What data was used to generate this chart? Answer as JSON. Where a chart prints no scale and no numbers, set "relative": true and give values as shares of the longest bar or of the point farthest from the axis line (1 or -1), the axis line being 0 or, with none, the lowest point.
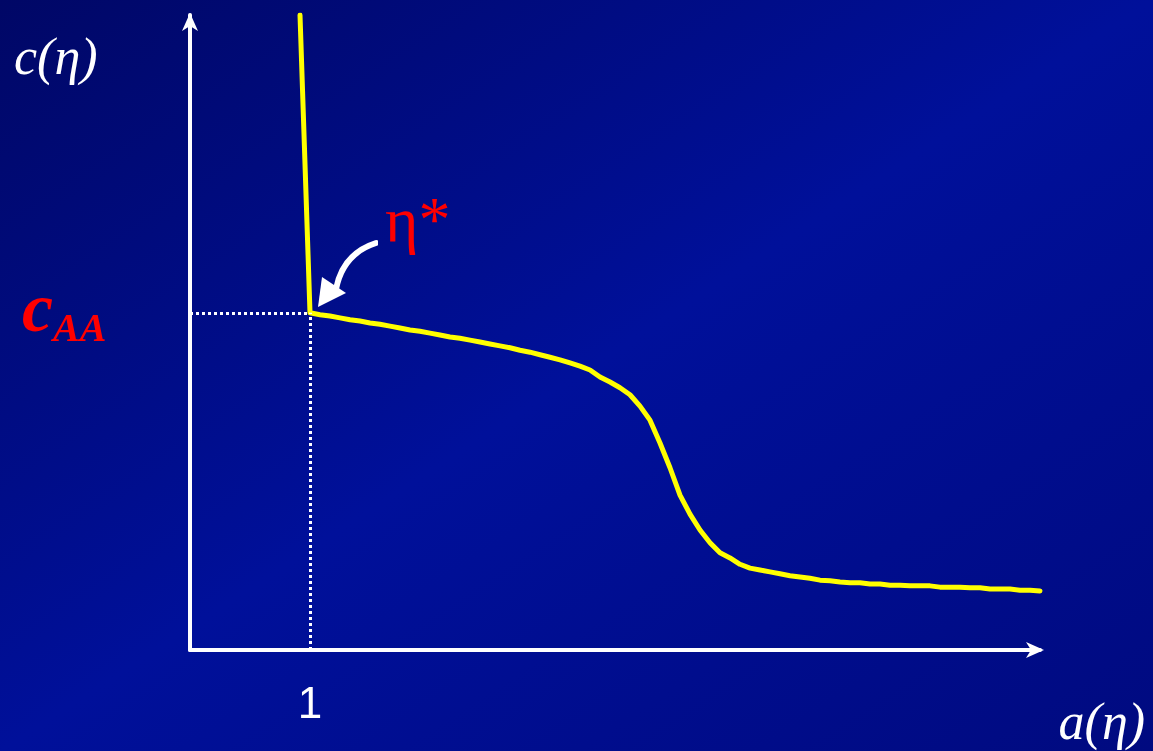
{
  "chart_data": {
    "type": "line",
    "xlabel": "a(η)",
    "ylabel": "c(η)",
    "relative": true,
    "grid": false,
    "marker": "none",
    "line_style": "solid",
    "categories": [
      null,
      null,
      null,
      null,
      null,
      null,
      null,
      null,
      null,
      null,
      null,
      null,
      null,
      null,
      null,
      null,
      null,
      null,
      null,
      null,
      null,
      null,
      null,
      null,
      null,
      null,
      null,
      null,
      null,
      null,
      null,
      null,
      null,
      null,
      null,
      null,
      null,
      null,
      null,
      null,
      null,
      null,
      null,
      null,
      null,
      null,
      null,
      null,
      null,
      null,
      null,
      null,
      null,
      null,
      null,
      null,
      null,
      null,
      null,
      null,
      null,
      null,
      null,
      null,
      null,
      null,
      null,
      null,
      null,
      null,
      null,
      null,
      null,
      null,
      null,
      null,
      null,
      null,
      null,
      null,
      null,
      null,
      null,
      null,
      null,
      null
    ],
    "series": [
      {
        "color": "#ffff00",
        "values": [
          null,
          null,
          null,
          null,
          null,
          null,
          null,
          null,
          null,
          null,
          null,
          1,
          0.531,
          0.528,
          0.526,
          0.523,
          0.52,
          0.518,
          0.515,
          0.513,
          0.51,
          0.507,
          0.504,
          0.502,
          0.499,
          0.496,
          0.493,
          0.491,
          0.488,
          0.485,
          0.482,
          0.479,
          0.476,
          0.472,
          0.469,
          0.465,
          0.461,
          0.457,
          0.452,
          0.447,
          0.441,
          0.43,
          0.422,
          0.413,
          0.402,
          0.384,
          0.362,
          0.326,
          0.287,
          0.244,
          0.214,
          0.189,
          0.169,
          0.153,
          0.145,
          0.135,
          0.129,
          0.126,
          0.123,
          0.12,
          0.117,
          0.115,
          0.113,
          0.11,
          0.109,
          0.107,
          0.106,
          0.106,
          0.104,
          0.104,
          0.102,
          0.102,
          0.101,
          0.101,
          0.101,
          0.099,
          0.099,
          0.099,
          0.098,
          0.098,
          0.096,
          0.096,
          0.096,
          0.094,
          0.094,
          0.093
        ]
      }
    ],
    "ref_lines": [
      {
        "axis": "y",
        "value": 0.531,
        "label": "c$_{AA}$",
        "color": "#ffffff",
        "line_style": "dotted"
      }
    ],
    "annotations": [
      "1",
      "η*"
    ]
  }
}
